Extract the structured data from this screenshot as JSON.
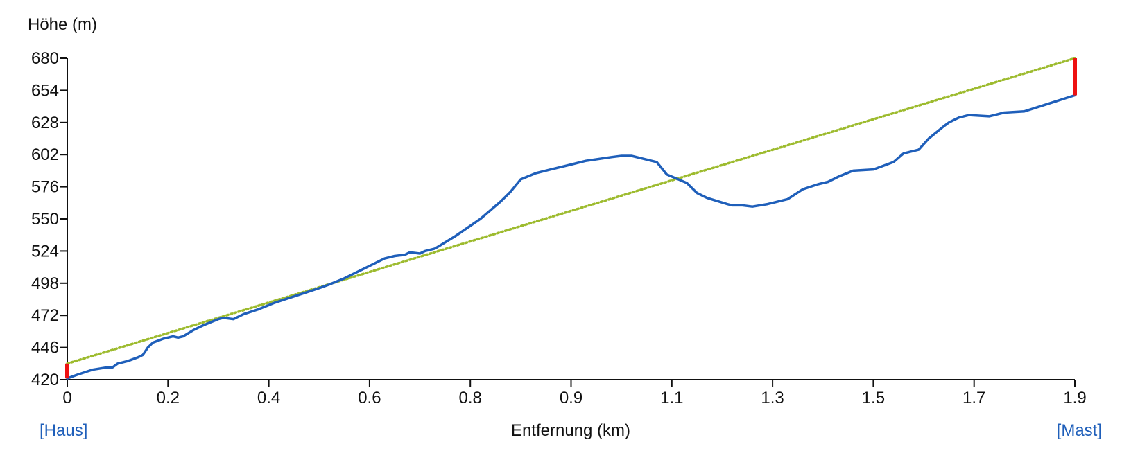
{
  "chart_data": {
    "type": "line",
    "title": "",
    "ylabel": "Höhe (m)",
    "xlabel": "Entfernung (km)",
    "xlim": [
      0,
      2.0
    ],
    "ylim": [
      420,
      680
    ],
    "x_ticks": [
      "0",
      "0.2",
      "0.4",
      "0.6",
      "0.8",
      "0.9",
      "1.1",
      "1.3",
      "1.5",
      "1.7",
      "1.9"
    ],
    "y_ticks": [
      "420",
      "446",
      "472",
      "498",
      "524",
      "550",
      "576",
      "602",
      "628",
      "654",
      "680"
    ],
    "grid": false,
    "series": [
      {
        "name": "",
        "kind": "profile",
        "color": "#1f5fba",
        "x": [
          0,
          0.02,
          0.05,
          0.08,
          0.09,
          0.1,
          0.12,
          0.14,
          0.15,
          0.16,
          0.17,
          0.19,
          0.21,
          0.22,
          0.23,
          0.25,
          0.27,
          0.3,
          0.31,
          0.33,
          0.35,
          0.38,
          0.41,
          0.44,
          0.47,
          0.5,
          0.52,
          0.55,
          0.58,
          0.6,
          0.63,
          0.65,
          0.67,
          0.68,
          0.7,
          0.71,
          0.73,
          0.77,
          0.82,
          0.86,
          0.88,
          0.9,
          0.93,
          0.96,
          1.0,
          1.03,
          1.08,
          1.1,
          1.12,
          1.14,
          1.17,
          1.19,
          1.23,
          1.25,
          1.27,
          1.31,
          1.32,
          1.34,
          1.36,
          1.39,
          1.4,
          1.43,
          1.46,
          1.49,
          1.51,
          1.53,
          1.56,
          1.6,
          1.64,
          1.66,
          1.69,
          1.71,
          1.74,
          1.75,
          1.76,
          1.77,
          1.79,
          1.83,
          1.86,
          1.9,
          2.0
        ],
        "y": [
          421,
          424,
          428,
          430,
          430,
          433,
          435,
          438,
          440,
          446,
          450,
          453,
          455,
          454,
          455,
          460,
          464,
          469,
          470,
          469,
          473,
          477,
          482,
          486,
          490,
          494,
          497,
          502,
          508,
          512,
          518,
          520,
          521,
          523,
          522,
          524,
          526,
          536,
          550,
          564,
          572,
          582,
          587,
          590,
          594,
          597,
          600,
          601,
          601,
          599,
          596,
          586,
          579,
          571,
          567,
          562,
          561,
          561,
          560,
          562,
          563,
          566,
          574,
          578,
          580,
          584,
          589,
          590,
          596,
          603,
          606,
          615,
          625,
          628,
          630,
          632,
          634,
          633,
          636,
          637,
          650
        ]
      },
      {
        "name": "",
        "kind": "line-of-sight",
        "color": "#9dbb2e",
        "x": [
          0,
          2.0
        ],
        "y": [
          433,
          680
        ]
      }
    ],
    "endpoint_markers": {
      "color": "#ee1111",
      "start": {
        "x": 0,
        "y_from": 421,
        "y_to": 433
      },
      "end": {
        "x": 2.0,
        "y_from": 650,
        "y_to": 680
      }
    }
  },
  "endpoints": {
    "start_label": "[Haus]",
    "end_label": "[Mast]",
    "link_color": "#1f5fba"
  },
  "axis_color": "#111111"
}
